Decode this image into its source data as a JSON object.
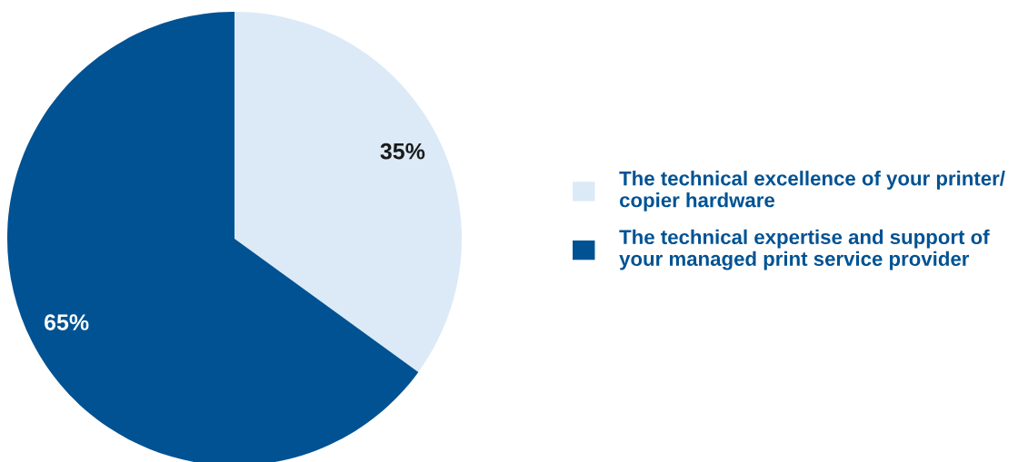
{
  "chart_data": {
    "type": "pie",
    "categories": [
      "The technical excellence of your printer/\ncopier hardware",
      "The technical expertise and support of\nyour managed print service provider"
    ],
    "values": [
      35,
      65
    ],
    "colors": [
      "#dbeaf6",
      "#005293"
    ],
    "value_labels": [
      "35%",
      "65%"
    ],
    "legend": "right"
  }
}
